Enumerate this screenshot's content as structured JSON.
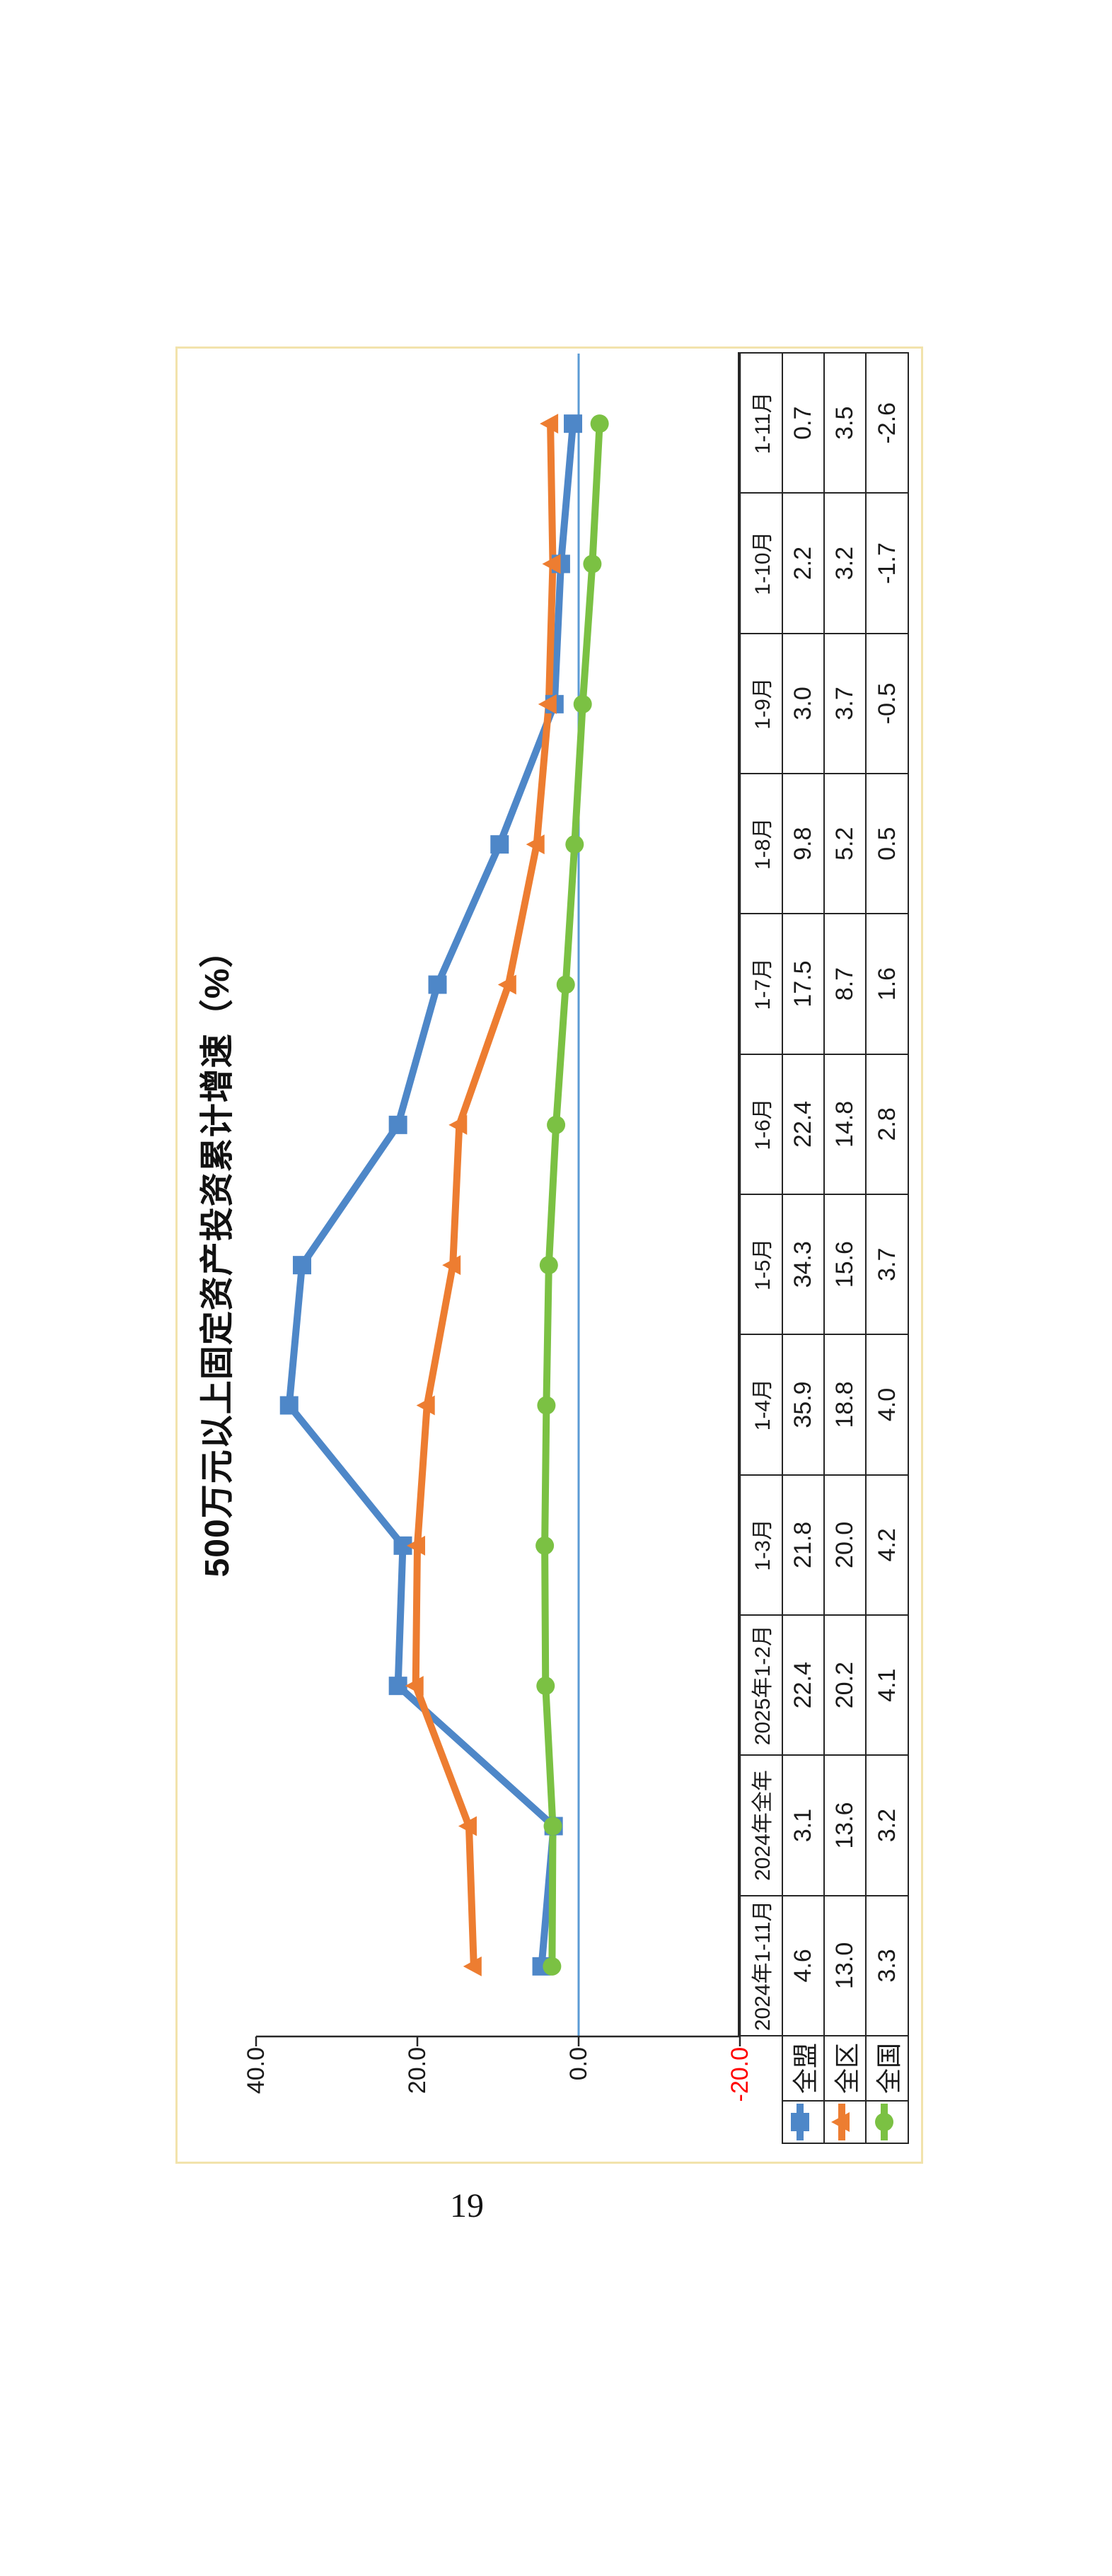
{
  "page": {
    "number": "19"
  },
  "chart_data": {
    "type": "line",
    "title": "500万元以上固定资产投资累计增速（%）",
    "categories": [
      "2024年1-11月",
      "2024年全年",
      "2025年1-2月",
      "1-3月",
      "1-4月",
      "1-5月",
      "1-6月",
      "1-7月",
      "1-8月",
      "1-9月",
      "1-10月",
      "1-11月"
    ],
    "series": [
      {
        "name": "全盟",
        "marker": "square",
        "color": "#4E87C8",
        "values": [
          "4.6",
          "3.1",
          "22.4",
          "21.8",
          "35.9",
          "34.3",
          "22.4",
          "17.5",
          "9.8",
          "3.0",
          "2.2",
          "0.7"
        ]
      },
      {
        "name": "全区",
        "marker": "triangle",
        "color": "#ED7D31",
        "values": [
          "13.0",
          "13.6",
          "20.2",
          "20.0",
          "18.8",
          "15.6",
          "14.8",
          "8.7",
          "5.2",
          "3.7",
          "3.2",
          "3.5"
        ]
      },
      {
        "name": "全国",
        "marker": "circle",
        "color": "#7BC143",
        "values": [
          "3.3",
          "3.2",
          "4.1",
          "4.2",
          "4.0",
          "3.7",
          "2.8",
          "1.6",
          "0.5",
          "-0.5",
          "-1.7",
          "-2.6"
        ]
      }
    ],
    "y_axis": {
      "tick_labels": [
        "40.0",
        "20.0",
        "0.0",
        "-20.0"
      ],
      "tick_values": [
        40,
        20,
        0,
        -20
      ],
      "max": 40,
      "min": -20,
      "negative_label_color": "#FF0000",
      "axis_color": "#262626",
      "zero_gridline_color": "#5B9BD5"
    },
    "grid": "zero-line-only",
    "legend_position": "table-left",
    "data_table_shown": true,
    "orientation": "rotated-90-ccw",
    "chart_border_color": "#F2E3AC"
  }
}
